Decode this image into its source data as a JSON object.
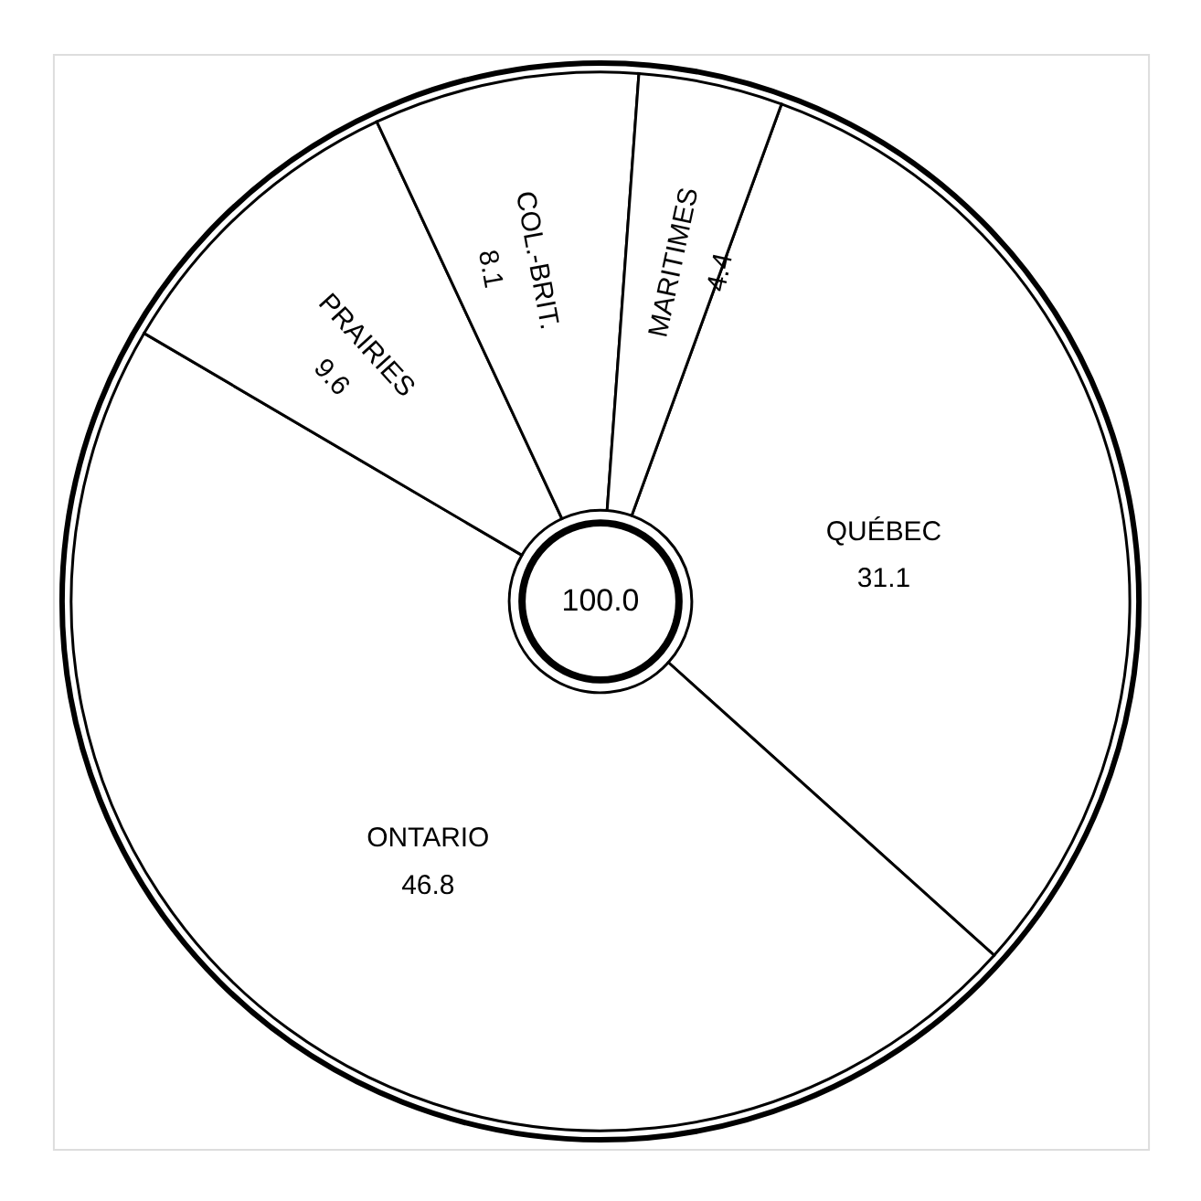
{
  "chart_data": {
    "type": "donut",
    "categories": [
      "QUÉBEC",
      "ONTARIO",
      "PRAIRIES",
      "COL.-BRIT.",
      "MARITIMES"
    ],
    "values": [
      31.1,
      46.8,
      9.6,
      8.1,
      4.4
    ],
    "colors": [
      "#ffffff",
      "#ffffff",
      "#ffffff",
      "#ffffff",
      "#ffffff"
    ],
    "data_labels": true,
    "legend": false,
    "annotations": [
      "100.0"
    ]
  }
}
